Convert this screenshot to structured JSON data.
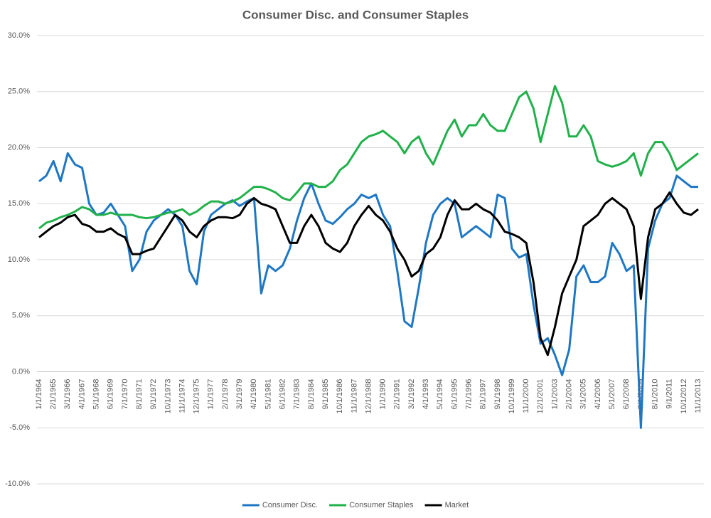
{
  "chart_data": {
    "type": "line",
    "title": "Consumer Disc. and Consumer Staples",
    "categories": [
      "1/1/1964",
      null,
      "2/1/1965",
      null,
      "3/1/1966",
      null,
      "4/1/1967",
      null,
      "5/1/1968",
      null,
      "6/1/1969",
      null,
      "7/1/1970",
      null,
      "8/1/1971",
      null,
      "9/1/1972",
      null,
      "10/1/1973",
      null,
      "11/1/1974",
      null,
      "12/1/1975",
      null,
      "1/1/1977",
      null,
      "2/1/1978",
      null,
      "3/1/1979",
      null,
      "4/1/1980",
      null,
      "5/1/1981",
      null,
      "6/1/1982",
      null,
      "7/1/1983",
      null,
      "8/1/1984",
      null,
      "9/1/1985",
      null,
      "10/1/1986",
      null,
      "11/1/1987",
      null,
      "12/1/1988",
      null,
      "1/1/1990",
      null,
      "2/1/1991",
      null,
      "3/1/1992",
      null,
      "4/1/1993",
      null,
      "5/1/1994",
      null,
      "6/1/1995",
      null,
      "7/1/1996",
      null,
      "8/1/1997",
      null,
      "9/1/1998",
      null,
      "10/1/1999",
      null,
      "11/1/2000",
      null,
      "12/1/2001",
      null,
      "1/1/2003",
      null,
      "2/1/2004",
      null,
      "3/1/2005",
      null,
      "4/1/2006",
      null,
      "5/1/2007",
      null,
      "6/1/2008",
      null,
      "7/1/2009",
      null,
      "8/1/2010",
      null,
      "9/1/2011",
      null,
      "10/1/2012",
      null,
      "11/1/2013"
    ],
    "series": [
      {
        "name": "Consumer Disc.",
        "color": "#1f77c4",
        "values": [
          17.0,
          17.5,
          18.8,
          17.0,
          19.5,
          18.5,
          18.2,
          15.0,
          14.0,
          14.2,
          15.0,
          14.0,
          13.0,
          9.0,
          10.0,
          12.5,
          13.5,
          14.0,
          14.5,
          14.0,
          13.0,
          9.0,
          7.8,
          12.5,
          14.0,
          14.5,
          15.0,
          15.3,
          14.8,
          15.2,
          15.5,
          7.0,
          9.5,
          9.0,
          9.5,
          11.0,
          13.5,
          15.5,
          16.8,
          15.0,
          13.5,
          13.2,
          13.8,
          14.5,
          15.0,
          15.8,
          15.5,
          15.8,
          14.0,
          13.0,
          9.0,
          4.5,
          4.0,
          7.5,
          11.5,
          14.0,
          15.0,
          15.5,
          15.0,
          12.0,
          12.5,
          13.0,
          12.5,
          12.0,
          15.8,
          15.5,
          11.0,
          10.2,
          10.5,
          6.0,
          2.5,
          3.0,
          1.5,
          -0.3,
          2.0,
          8.5,
          9.5,
          8.0,
          8.0,
          8.5,
          11.5,
          10.5,
          9.0,
          9.5,
          -5.0,
          11.0,
          13.5,
          15.0,
          15.5,
          17.5,
          17.0,
          16.5,
          16.5
        ]
      },
      {
        "name": "Consumer Staples",
        "color": "#21b14b",
        "values": [
          12.8,
          13.3,
          13.5,
          13.8,
          14.0,
          14.3,
          14.7,
          14.5,
          14.0,
          14.0,
          14.2,
          14.0,
          14.0,
          14.0,
          13.8,
          13.7,
          13.8,
          14.0,
          14.2,
          14.3,
          14.5,
          14.0,
          14.3,
          14.8,
          15.2,
          15.2,
          15.0,
          15.2,
          15.5,
          16.0,
          16.5,
          16.5,
          16.3,
          16.0,
          15.5,
          15.3,
          16.0,
          16.8,
          16.8,
          16.5,
          16.5,
          17.0,
          18.0,
          18.5,
          19.5,
          20.5,
          21.0,
          21.2,
          21.5,
          21.0,
          20.5,
          19.5,
          20.5,
          21.0,
          19.5,
          18.5,
          20.0,
          21.5,
          22.5,
          21.0,
          22.0,
          22.0,
          23.0,
          22.0,
          21.5,
          21.5,
          23.0,
          24.5,
          25.0,
          23.5,
          20.5,
          23.0,
          25.5,
          24.0,
          21.0,
          21.0,
          22.0,
          21.0,
          18.8,
          18.5,
          18.3,
          18.5,
          18.8,
          19.5,
          17.5,
          19.5,
          20.5,
          20.5,
          19.5,
          18.0,
          18.5,
          19.0,
          19.5
        ]
      },
      {
        "name": "Market",
        "color": "#000000",
        "values": [
          12.0,
          12.5,
          13.0,
          13.3,
          13.8,
          14.0,
          13.2,
          13.0,
          12.5,
          12.5,
          12.8,
          12.3,
          12.0,
          10.5,
          10.5,
          10.8,
          11.0,
          12.0,
          13.0,
          14.0,
          13.5,
          12.5,
          12.0,
          13.0,
          13.5,
          13.8,
          13.8,
          13.7,
          14.0,
          15.0,
          15.5,
          15.0,
          14.8,
          14.5,
          13.0,
          11.5,
          11.5,
          13.0,
          14.0,
          13.0,
          11.5,
          11.0,
          10.7,
          11.5,
          13.0,
          14.0,
          14.8,
          14.0,
          13.5,
          12.5,
          11.0,
          10.0,
          8.5,
          9.0,
          10.5,
          11.0,
          12.0,
          14.0,
          15.3,
          14.5,
          14.5,
          15.0,
          14.5,
          14.2,
          13.5,
          12.5,
          12.3,
          12.0,
          11.5,
          8.0,
          3.0,
          1.5,
          4.0,
          7.0,
          8.5,
          10.0,
          13.0,
          13.5,
          14.0,
          15.0,
          15.5,
          15.0,
          14.5,
          13.0,
          6.5,
          12.0,
          14.5,
          15.0,
          16.0,
          15.0,
          14.2,
          14.0,
          14.5
        ]
      }
    ],
    "ylim": [
      -10,
      30
    ],
    "yticks": [
      {
        "value": -10,
        "label": "-10.0%"
      },
      {
        "value": -5,
        "label": "-5.0%"
      },
      {
        "value": 0,
        "label": "0.0%"
      },
      {
        "value": 5,
        "label": "5.0%"
      },
      {
        "value": 10,
        "label": "10.0%"
      },
      {
        "value": 15,
        "label": "15.0%"
      },
      {
        "value": 20,
        "label": "20.0%"
      },
      {
        "value": 25,
        "label": "25.0%"
      },
      {
        "value": 30,
        "label": "30.0%"
      }
    ],
    "grid": true,
    "legend": "bottom"
  }
}
